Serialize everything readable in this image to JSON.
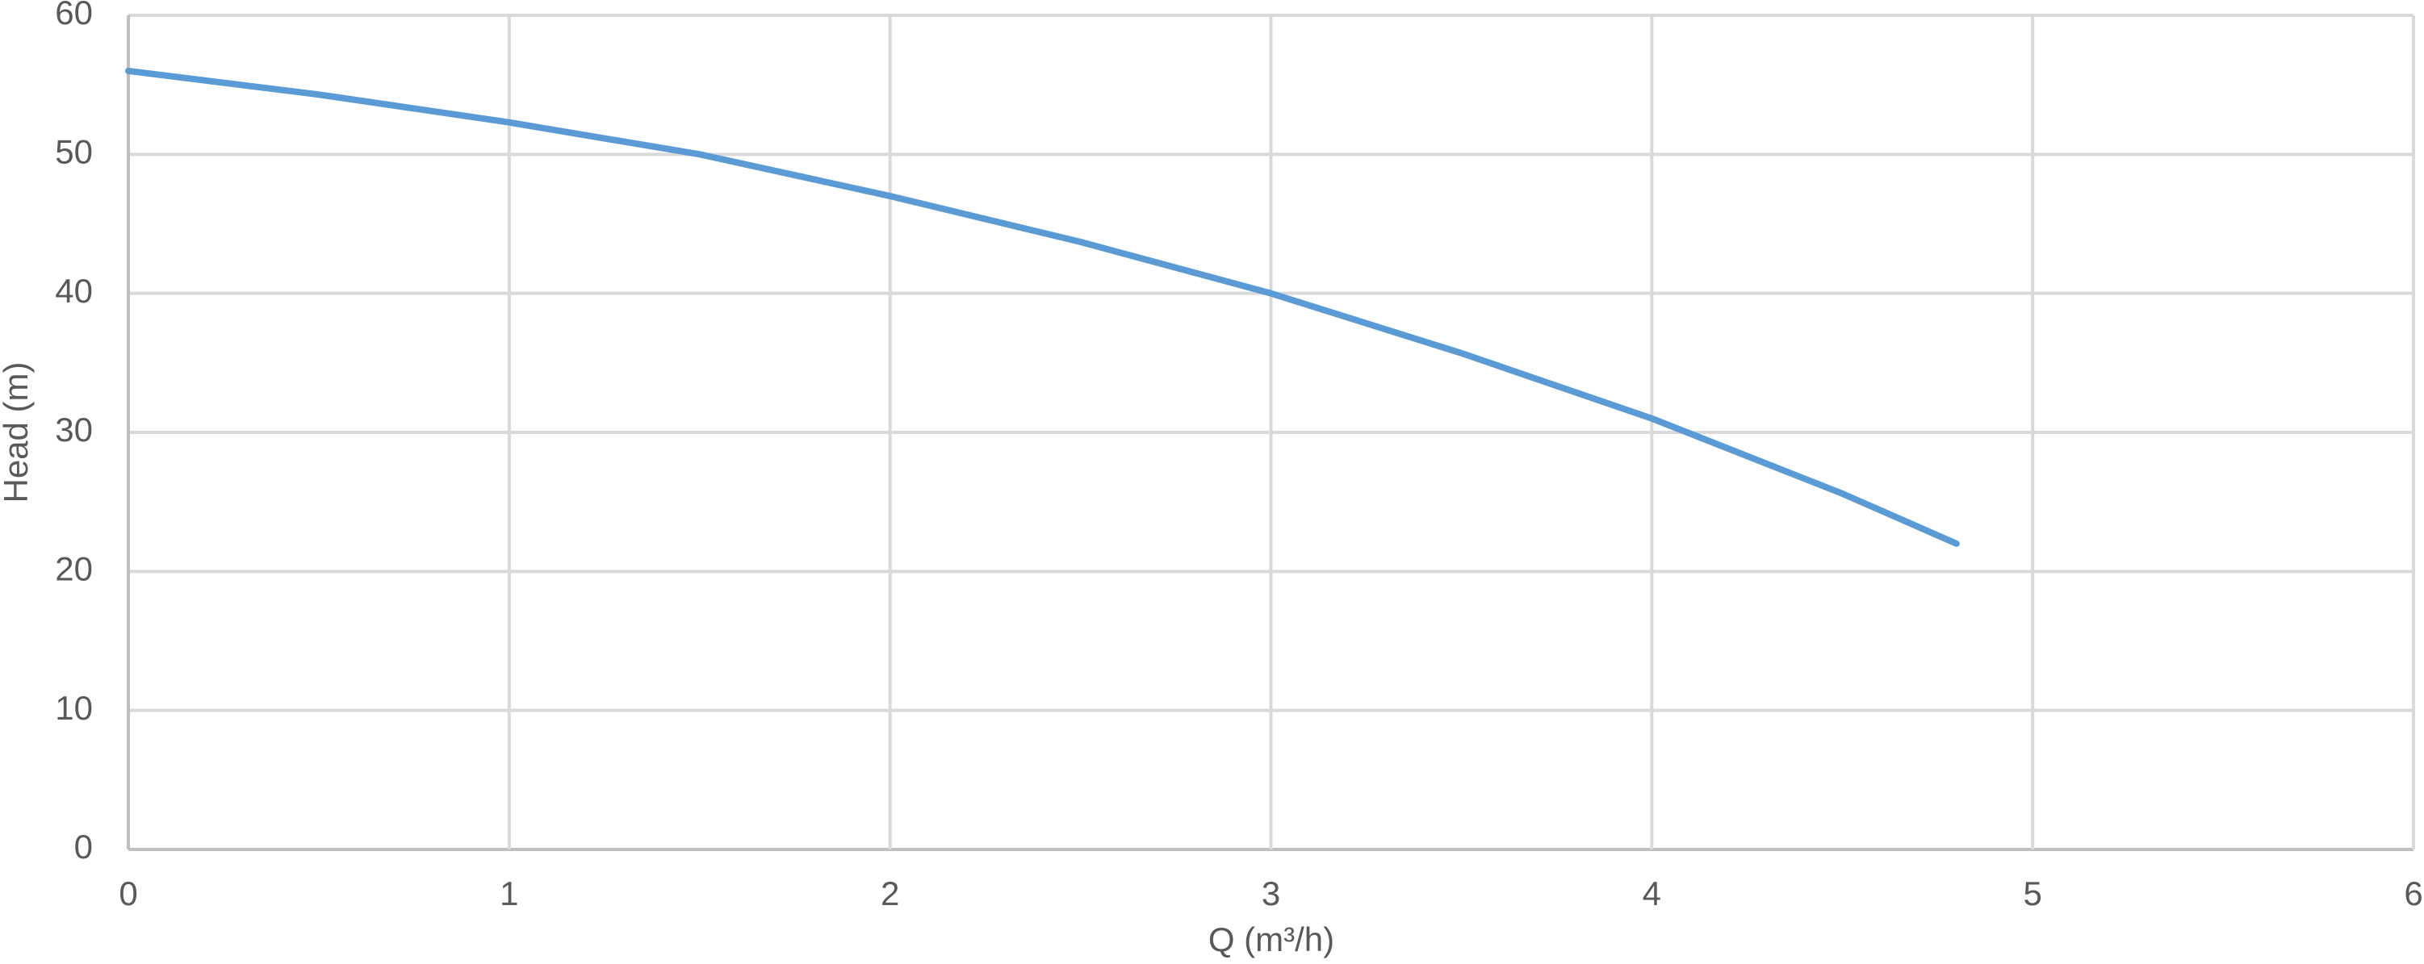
{
  "chart_data": {
    "type": "line",
    "x_label": "Q (m³/h)",
    "y_label": "Head (m)",
    "x": [
      0,
      0.5,
      1,
      1.5,
      2,
      2.5,
      3,
      3.5,
      4,
      4.5,
      4.8
    ],
    "series": [
      {
        "name": "Head",
        "color": "#5b9bd5",
        "values": [
          56,
          54.3,
          52.3,
          50,
          47,
          43.7,
          40,
          35.7,
          31,
          25.6,
          22
        ]
      }
    ],
    "xlim": [
      0,
      6
    ],
    "xticks": [
      0,
      1,
      2,
      3,
      4,
      5,
      6
    ],
    "ylim": [
      0,
      60
    ],
    "yticks": [
      0,
      10,
      20,
      30,
      40,
      50,
      60
    ],
    "grid": true
  }
}
